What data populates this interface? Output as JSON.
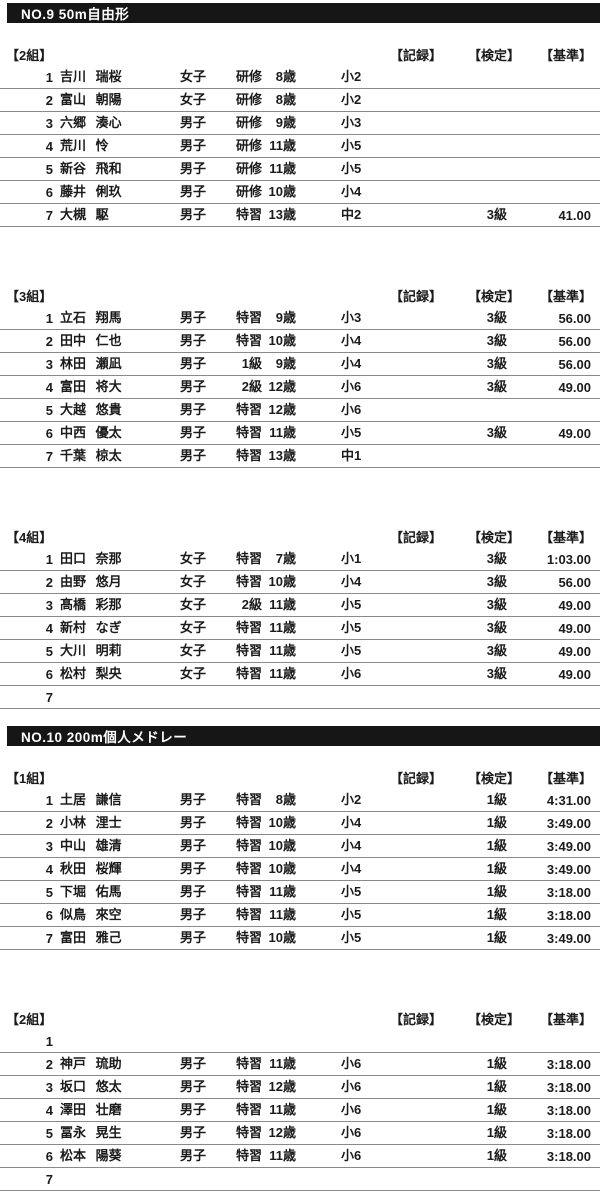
{
  "document": {
    "column_headers": {
      "record": "【記録】",
      "certification": "【検定】",
      "standard": "【基準】"
    },
    "events": [
      {
        "title": "NO.9 50m自由形",
        "heats": [
          {
            "label": "【2組】",
            "rows": [
              {
                "lane": "1",
                "name": "吉川 瑞桜",
                "gender": "女子",
                "class": "研修",
                "age": "8歳",
                "grade": "小2",
                "record": "",
                "certification": "",
                "standard": ""
              },
              {
                "lane": "2",
                "name": "富山 朝陽",
                "gender": "女子",
                "class": "研修",
                "age": "8歳",
                "grade": "小2",
                "record": "",
                "certification": "",
                "standard": ""
              },
              {
                "lane": "3",
                "name": "六郷 湊心",
                "gender": "男子",
                "class": "研修",
                "age": "9歳",
                "grade": "小3",
                "record": "",
                "certification": "",
                "standard": ""
              },
              {
                "lane": "4",
                "name": "荒川 怜",
                "gender": "男子",
                "class": "研修",
                "age": "11歳",
                "grade": "小5",
                "record": "",
                "certification": "",
                "standard": ""
              },
              {
                "lane": "5",
                "name": "新谷 飛和",
                "gender": "男子",
                "class": "研修",
                "age": "11歳",
                "grade": "小5",
                "record": "",
                "certification": "",
                "standard": ""
              },
              {
                "lane": "6",
                "name": "藤井 俐玖",
                "gender": "男子",
                "class": "研修",
                "age": "10歳",
                "grade": "小4",
                "record": "",
                "certification": "",
                "standard": ""
              },
              {
                "lane": "7",
                "name": "大槻 駆",
                "gender": "男子",
                "class": "特習",
                "age": "13歳",
                "grade": "中2",
                "record": "",
                "certification": "3級",
                "standard": "41.00"
              }
            ]
          },
          {
            "label": "【3組】",
            "rows": [
              {
                "lane": "1",
                "name": "立石 翔馬",
                "gender": "男子",
                "class": "特習",
                "age": "9歳",
                "grade": "小3",
                "record": "",
                "certification": "3級",
                "standard": "56.00"
              },
              {
                "lane": "2",
                "name": "田中 仁也",
                "gender": "男子",
                "class": "特習",
                "age": "10歳",
                "grade": "小4",
                "record": "",
                "certification": "3級",
                "standard": "56.00"
              },
              {
                "lane": "3",
                "name": "林田 瀬凪",
                "gender": "男子",
                "class": "1級",
                "age": "9歳",
                "grade": "小4",
                "record": "",
                "certification": "3級",
                "standard": "56.00"
              },
              {
                "lane": "4",
                "name": "富田 将大",
                "gender": "男子",
                "class": "2級",
                "age": "12歳",
                "grade": "小6",
                "record": "",
                "certification": "3級",
                "standard": "49.00"
              },
              {
                "lane": "5",
                "name": "大越 悠貴",
                "gender": "男子",
                "class": "特習",
                "age": "12歳",
                "grade": "小6",
                "record": "",
                "certification": "",
                "standard": ""
              },
              {
                "lane": "6",
                "name": "中西 優太",
                "gender": "男子",
                "class": "特習",
                "age": "11歳",
                "grade": "小5",
                "record": "",
                "certification": "3級",
                "standard": "49.00"
              },
              {
                "lane": "7",
                "name": "千葉 椋太",
                "gender": "男子",
                "class": "特習",
                "age": "13歳",
                "grade": "中1",
                "record": "",
                "certification": "",
                "standard": ""
              }
            ]
          },
          {
            "label": "【4組】",
            "rows": [
              {
                "lane": "1",
                "name": "田口 奈那",
                "gender": "女子",
                "class": "特習",
                "age": "7歳",
                "grade": "小1",
                "record": "",
                "certification": "3級",
                "standard": "1:03.00"
              },
              {
                "lane": "2",
                "name": "由野 悠月",
                "gender": "女子",
                "class": "特習",
                "age": "10歳",
                "grade": "小4",
                "record": "",
                "certification": "3級",
                "standard": "56.00"
              },
              {
                "lane": "3",
                "name": "髙橋 彩那",
                "gender": "女子",
                "class": "2級",
                "age": "11歳",
                "grade": "小5",
                "record": "",
                "certification": "3級",
                "standard": "49.00"
              },
              {
                "lane": "4",
                "name": "新村 なぎ",
                "gender": "女子",
                "class": "特習",
                "age": "11歳",
                "grade": "小5",
                "record": "",
                "certification": "3級",
                "standard": "49.00"
              },
              {
                "lane": "5",
                "name": "大川 明莉",
                "gender": "女子",
                "class": "特習",
                "age": "11歳",
                "grade": "小5",
                "record": "",
                "certification": "3級",
                "standard": "49.00"
              },
              {
                "lane": "6",
                "name": "松村 梨央",
                "gender": "女子",
                "class": "特習",
                "age": "11歳",
                "grade": "小6",
                "record": "",
                "certification": "3級",
                "standard": "49.00"
              },
              {
                "lane": "7",
                "name": "",
                "gender": "",
                "class": "",
                "age": "",
                "grade": "",
                "record": "",
                "certification": "",
                "standard": ""
              }
            ]
          }
        ]
      },
      {
        "title": "NO.10 200m個人メドレー",
        "heats": [
          {
            "label": "【1組】",
            "rows": [
              {
                "lane": "1",
                "name": "土居 謙信",
                "gender": "男子",
                "class": "特習",
                "age": "8歳",
                "grade": "小2",
                "record": "",
                "certification": "1級",
                "standard": "4:31.00"
              },
              {
                "lane": "2",
                "name": "小林 浬士",
                "gender": "男子",
                "class": "特習",
                "age": "10歳",
                "grade": "小4",
                "record": "",
                "certification": "1級",
                "standard": "3:49.00"
              },
              {
                "lane": "3",
                "name": "中山 雄清",
                "gender": "男子",
                "class": "特習",
                "age": "10歳",
                "grade": "小4",
                "record": "",
                "certification": "1級",
                "standard": "3:49.00"
              },
              {
                "lane": "4",
                "name": "秋田 桜輝",
                "gender": "男子",
                "class": "特習",
                "age": "10歳",
                "grade": "小4",
                "record": "",
                "certification": "1級",
                "standard": "3:49.00"
              },
              {
                "lane": "5",
                "name": "下堀 佑馬",
                "gender": "男子",
                "class": "特習",
                "age": "11歳",
                "grade": "小5",
                "record": "",
                "certification": "1級",
                "standard": "3:18.00"
              },
              {
                "lane": "6",
                "name": "似鳥 來空",
                "gender": "男子",
                "class": "特習",
                "age": "11歳",
                "grade": "小5",
                "record": "",
                "certification": "1級",
                "standard": "3:18.00"
              },
              {
                "lane": "7",
                "name": "富田 雅己",
                "gender": "男子",
                "class": "特習",
                "age": "10歳",
                "grade": "小5",
                "record": "",
                "certification": "1級",
                "standard": "3:49.00"
              }
            ]
          },
          {
            "label": "【2組】",
            "rows": [
              {
                "lane": "1",
                "name": "",
                "gender": "",
                "class": "",
                "age": "",
                "grade": "",
                "record": "",
                "certification": "",
                "standard": ""
              },
              {
                "lane": "2",
                "name": "神戸 琉助",
                "gender": "男子",
                "class": "特習",
                "age": "11歳",
                "grade": "小6",
                "record": "",
                "certification": "1級",
                "standard": "3:18.00"
              },
              {
                "lane": "3",
                "name": "坂口 悠太",
                "gender": "男子",
                "class": "特習",
                "age": "12歳",
                "grade": "小6",
                "record": "",
                "certification": "1級",
                "standard": "3:18.00"
              },
              {
                "lane": "4",
                "name": "澤田 壮磨",
                "gender": "男子",
                "class": "特習",
                "age": "11歳",
                "grade": "小6",
                "record": "",
                "certification": "1級",
                "standard": "3:18.00"
              },
              {
                "lane": "5",
                "name": "冨永 晃生",
                "gender": "男子",
                "class": "特習",
                "age": "12歳",
                "grade": "小6",
                "record": "",
                "certification": "1級",
                "standard": "3:18.00"
              },
              {
                "lane": "6",
                "name": "松本 陽葵",
                "gender": "男子",
                "class": "特習",
                "age": "11歳",
                "grade": "小6",
                "record": "",
                "certification": "1級",
                "standard": "3:18.00"
              },
              {
                "lane": "7",
                "name": "",
                "gender": "",
                "class": "",
                "age": "",
                "grade": "",
                "record": "",
                "certification": "",
                "standard": ""
              }
            ]
          }
        ]
      }
    ]
  }
}
